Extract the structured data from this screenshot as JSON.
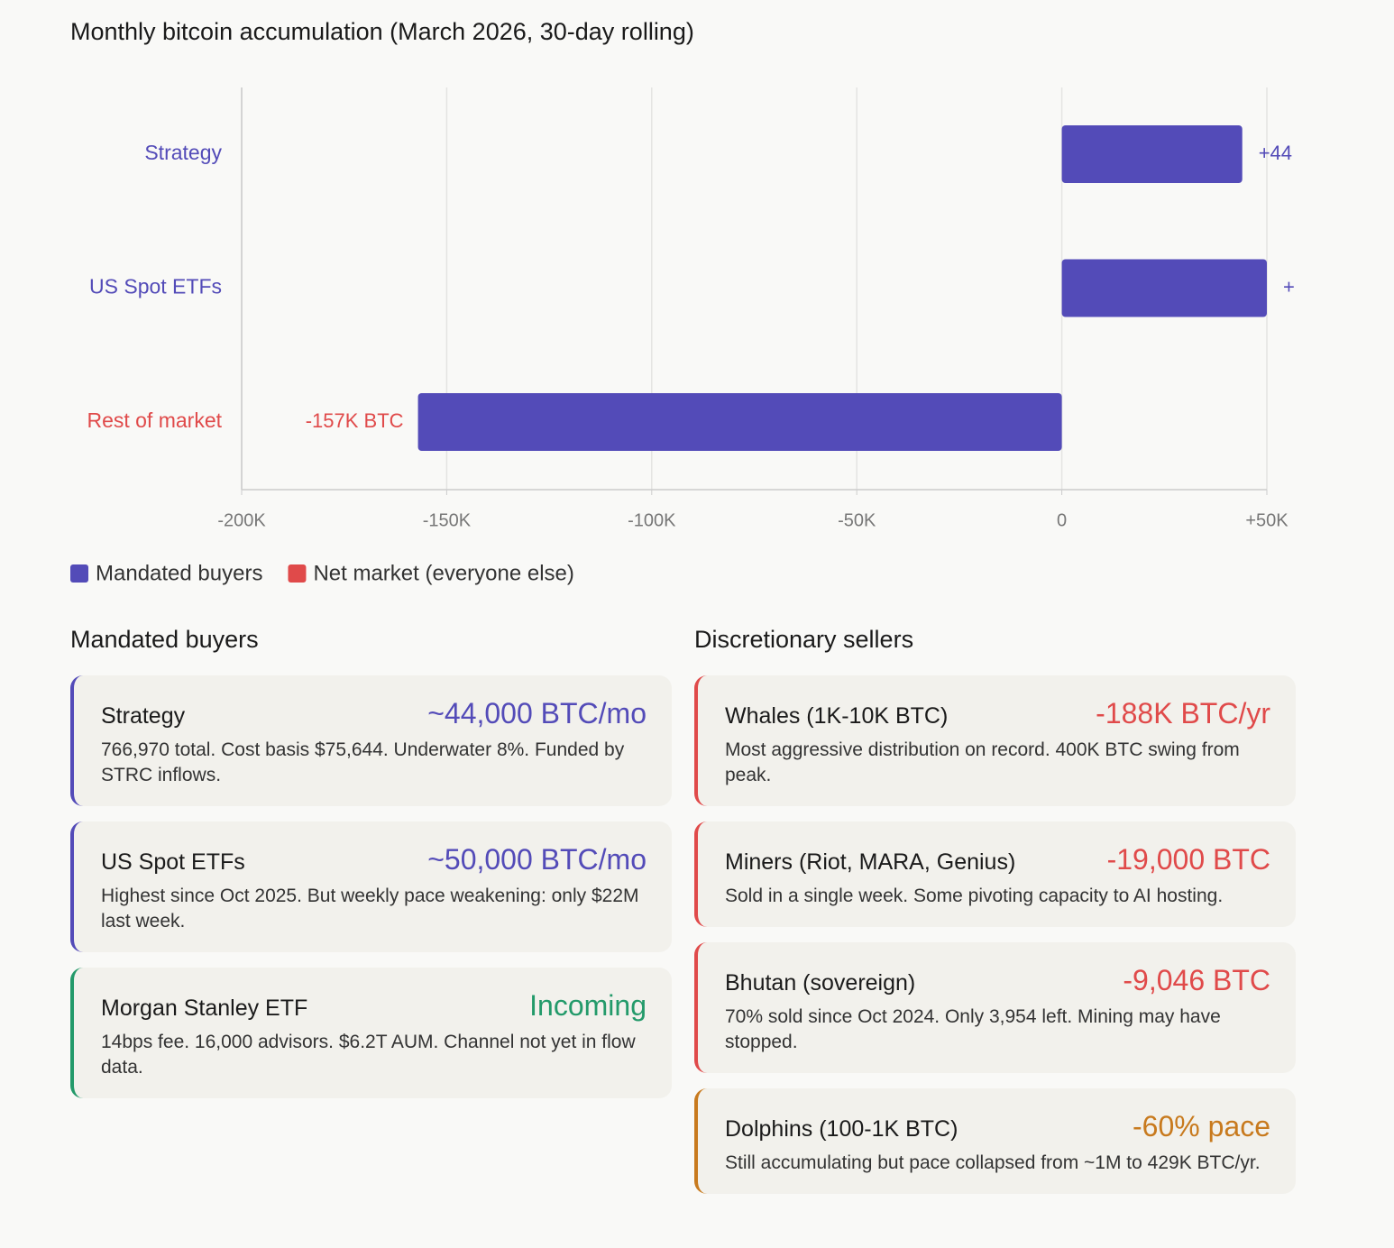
{
  "chart_data": {
    "type": "hbar",
    "title": "Monthly bitcoin accumulation (March 2026, 30-day rolling)",
    "categories": [
      "Strategy",
      "US Spot ETFs",
      "Rest of market"
    ],
    "values": [
      44000,
      50000,
      -157000
    ],
    "value_labels": [
      "+44",
      "+",
      "-157K BTC"
    ],
    "bar_color": "#534bb8",
    "label_colors": [
      "#534bb8",
      "#534bb8",
      "#e04a4a"
    ],
    "xlim": [
      -200000,
      50000
    ],
    "xticks": [
      {
        "value": -200000,
        "label": "-200K"
      },
      {
        "value": -150000,
        "label": "-150K"
      },
      {
        "value": -100000,
        "label": "-100K"
      },
      {
        "value": -50000,
        "label": "-50K"
      },
      0,
      {
        "value": 50000,
        "label": "+50K"
      }
    ],
    "grid": true,
    "legend": [
      {
        "name": "Mandated buyers",
        "color": "#534bb8"
      },
      {
        "name": "Net market (everyone else)",
        "color": "#e04a4a"
      }
    ]
  },
  "sections": [
    {
      "title": "Mandated buyers",
      "items": [
        {
          "name": "Strategy",
          "value": "~44,000 BTC/mo",
          "desc": "766,970 total. Cost basis $75,644. Underwater 8%. Funded by STRC inflows.",
          "color": "#534bb8"
        },
        {
          "name": "US Spot ETFs",
          "value": "~50,000 BTC/mo",
          "desc": "Highest since Oct 2025. But weekly pace weakening: only $22M last week.",
          "color": "#534bb8"
        },
        {
          "name": "Morgan Stanley ETF",
          "value": "Incoming",
          "desc": "14bps fee. 16,000 advisors. $6.2T AUM. Channel not yet in flow data.",
          "color": "#239a6a"
        }
      ]
    },
    {
      "title": "Discretionary sellers",
      "items": [
        {
          "name": "Whales (1K-10K BTC)",
          "value": "-188K BTC/yr",
          "desc": "Most aggressive distribution on record. 400K BTC swing from peak.",
          "color": "#e04a4a"
        },
        {
          "name": "Miners (Riot, MARA, Genius)",
          "value": "-19,000 BTC",
          "desc": "Sold in a single week. Some pivoting capacity to AI hosting.",
          "color": "#e04a4a"
        },
        {
          "name": "Bhutan (sovereign)",
          "value": "-9,046 BTC",
          "desc": "70% sold since Oct 2024. Only 3,954 left. Mining may have stopped.",
          "color": "#e04a4a"
        },
        {
          "name": "Dolphins (100-1K BTC)",
          "value": "-60% pace",
          "desc": "Still accumulating but pace collapsed from ~1M to 429K BTC/yr.",
          "color": "#c87a1e"
        }
      ]
    }
  ]
}
